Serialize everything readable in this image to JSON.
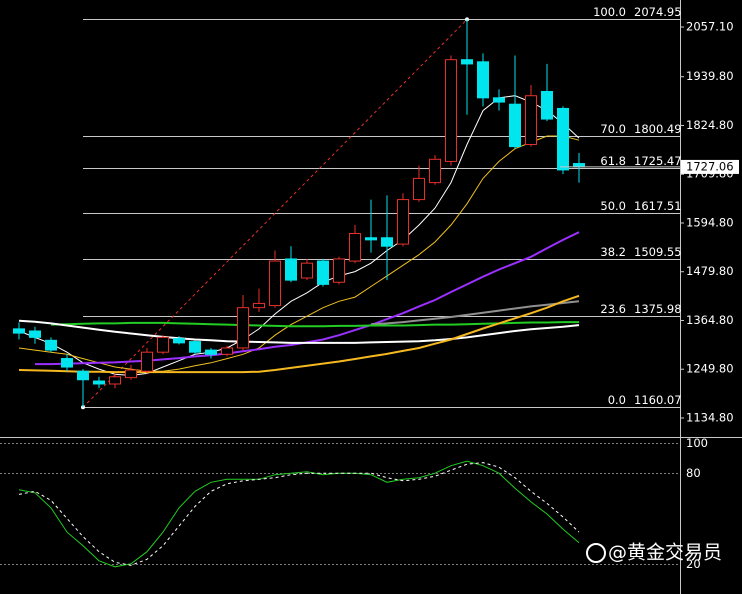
{
  "chart_data": [
    {
      "type": "candlestick",
      "categories": [
        null,
        null,
        null,
        null,
        null,
        null,
        null,
        null,
        null,
        null,
        null,
        null,
        null,
        null,
        null,
        null,
        null,
        null,
        null,
        null,
        null,
        null,
        null,
        null,
        null,
        null,
        null,
        null,
        null,
        null,
        null,
        null,
        null,
        null,
        null,
        null
      ],
      "open": [
        1345,
        1340,
        1318,
        1275,
        1245,
        1222,
        1215,
        1230,
        1245,
        1290,
        1322,
        1315,
        1295,
        1285,
        1300,
        1395,
        1400,
        1510,
        1465,
        1505,
        1455,
        1505,
        1560,
        1560,
        1545,
        1650,
        1690,
        1740,
        1980,
        1975,
        1890,
        1875,
        1780,
        1905,
        1865,
        1735
      ],
      "high": [
        1360,
        1350,
        1325,
        1285,
        1250,
        1232,
        1240,
        1260,
        1300,
        1330,
        1328,
        1318,
        1300,
        1305,
        1425,
        1440,
        1530,
        1540,
        1510,
        1510,
        1515,
        1590,
        1650,
        1660,
        1665,
        1730,
        1755,
        1990,
        2074.95,
        1995,
        1910,
        1990,
        1920,
        1970,
        1870,
        1760
      ],
      "low": [
        1320,
        1310,
        1290,
        1245,
        1160.07,
        1205,
        1205,
        1225,
        1240,
        1285,
        1308,
        1285,
        1275,
        1280,
        1295,
        1385,
        1395,
        1455,
        1460,
        1445,
        1450,
        1500,
        1525,
        1460,
        1540,
        1645,
        1685,
        1730,
        1850,
        1870,
        1860,
        1770,
        1775,
        1835,
        1710,
        1690
      ],
      "close": [
        1335,
        1325,
        1295,
        1255,
        1225,
        1215,
        1232,
        1248,
        1290,
        1325,
        1312,
        1290,
        1285,
        1300,
        1395,
        1405,
        1505,
        1460,
        1500,
        1450,
        1510,
        1570,
        1555,
        1540,
        1650,
        1700,
        1745,
        1980,
        1970,
        1890,
        1880,
        1775,
        1895,
        1840,
        1720,
        1727.06
      ],
      "up_color": "#e8302a",
      "down_color": "#00e5ee",
      "series": [
        {
          "color": "#ffffff",
          "width": 1,
          "values": [
            1340,
            1325,
            1310,
            1290,
            1265,
            1250,
            1238,
            1235,
            1240,
            1255,
            1270,
            1285,
            1290,
            1300,
            1320,
            1345,
            1380,
            1410,
            1430,
            1455,
            1470,
            1480,
            1500,
            1530,
            1555,
            1590,
            1630,
            1690,
            1780,
            1860,
            1890,
            1895,
            1880,
            1860,
            1830,
            1795
          ]
        },
        {
          "color": "#f0c020",
          "width": 1,
          "values": [
            1300,
            1295,
            1290,
            1285,
            1275,
            1265,
            1255,
            1250,
            1245,
            1245,
            1250,
            1258,
            1265,
            1275,
            1285,
            1300,
            1330,
            1355,
            1375,
            1395,
            1410,
            1420,
            1445,
            1470,
            1495,
            1520,
            1550,
            1590,
            1640,
            1700,
            1740,
            1770,
            1785,
            1800,
            1800,
            1790
          ]
        },
        {
          "color": "#9b30ff",
          "width": 2,
          "values": [
            null,
            1262,
            1262,
            1263,
            1264,
            1265,
            1266,
            1268,
            1270,
            1273,
            1276,
            1280,
            1283,
            1287,
            1292,
            1297,
            1303,
            1307,
            1313,
            1320,
            1330,
            1342,
            1354,
            1368,
            1382,
            1398,
            1413,
            1432,
            1450,
            1468,
            1485,
            1500,
            1515,
            1535,
            1555,
            1573
          ]
        },
        {
          "color": "#909090",
          "width": 2,
          "values": [
            null,
            null,
            null,
            null,
            null,
            null,
            null,
            null,
            null,
            null,
            null,
            null,
            null,
            null,
            null,
            null,
            null,
            null,
            null,
            null,
            null,
            null,
            1356,
            1358,
            1361,
            1365,
            1369,
            1373,
            1378,
            1383,
            1388,
            1393,
            1398,
            1402,
            1406,
            1410
          ]
        },
        {
          "color": "#22cc22",
          "width": 2,
          "values": [
            null,
            null,
            1355,
            1356,
            1357,
            1358,
            1358,
            1359,
            1359,
            1359,
            1358,
            1357,
            1356,
            1355,
            1354,
            1353,
            1352,
            1351,
            1351,
            1351,
            1352,
            1352,
            1353,
            1353,
            1353,
            1354,
            1355,
            1355,
            1356,
            1357,
            1358,
            1359,
            1360,
            1360,
            1361,
            1361
          ]
        },
        {
          "color": "#ffffff",
          "width": 2,
          "values": [
            1364,
            1362,
            1358,
            1353,
            1348,
            1343,
            1338,
            1334,
            1330,
            1326,
            1323,
            1320,
            1318,
            1316,
            1315,
            1314,
            1313,
            1312,
            1312,
            1312,
            1312,
            1312,
            1313,
            1314,
            1315,
            1316,
            1318,
            1321,
            1325,
            1330,
            1335,
            1340,
            1344,
            1347,
            1350,
            1354
          ]
        },
        {
          "color": "#f5b820",
          "width": 2,
          "values": [
            1248,
            1247,
            1246,
            1245,
            1244,
            1244,
            1243,
            1243,
            1243,
            1243,
            1243,
            1243,
            1243,
            1243,
            1243,
            1244,
            1248,
            1253,
            1258,
            1263,
            1268,
            1274,
            1280,
            1286,
            1293,
            1300,
            1310,
            1320,
            1333,
            1346,
            1358,
            1370,
            1382,
            1395,
            1410,
            1423
          ]
        }
      ],
      "fib_levels": [
        {
          "label": "100.0",
          "price": 2074.95
        },
        {
          "label": "70.0",
          "price": 1800.49
        },
        {
          "label": "61.8",
          "price": 1725.47
        },
        {
          "label": "50.0",
          "price": 1617.51
        },
        {
          "label": "38.2",
          "price": 1509.55
        },
        {
          "label": "23.6",
          "price": 1375.98
        },
        {
          "label": "0.0",
          "price": 1160.07
        }
      ],
      "last_price": 1727.06,
      "ylim": [
        1092.3,
        2120.8
      ],
      "yticks": [
        {
          "value": 2057.1,
          "label": "2057.10"
        },
        {
          "value": 1939.8,
          "label": "1939.80"
        },
        {
          "value": 1824.8,
          "label": "1824.80"
        },
        {
          "value": 1709.8,
          "label": "1709.80"
        },
        {
          "value": 1594.8,
          "label": "1594.80"
        },
        {
          "value": 1479.8,
          "label": "1479.80"
        },
        {
          "value": 1364.8,
          "label": "1364.80"
        },
        {
          "value": 1249.8,
          "label": "1249.80"
        },
        {
          "value": 1134.8,
          "label": "1134.80"
        }
      ]
    },
    {
      "type": "oscillator",
      "series": [
        {
          "color": "#22cc22",
          "dashed": false,
          "values": [
            69,
            67,
            57,
            41,
            32,
            22,
            18,
            20,
            28,
            41,
            57,
            68,
            74,
            76,
            76,
            76,
            79,
            80,
            81,
            79,
            80,
            80,
            79,
            74,
            76,
            77,
            80,
            85,
            88,
            85,
            80,
            70,
            61,
            53,
            43,
            34
          ]
        },
        {
          "color": "#ffffff",
          "dashed": true,
          "values": [
            66,
            68,
            62,
            50,
            38,
            28,
            21,
            19,
            23,
            32,
            45,
            58,
            68,
            73,
            75,
            76,
            77,
            79,
            80,
            80,
            80,
            80,
            80,
            77,
            75,
            76,
            78,
            82,
            86,
            87,
            84,
            77,
            68,
            60,
            51,
            41
          ]
        }
      ],
      "ylim": [
        0,
        102
      ],
      "yticks": [
        100,
        80,
        20
      ]
    }
  ],
  "watermark": "@黄金交易员"
}
